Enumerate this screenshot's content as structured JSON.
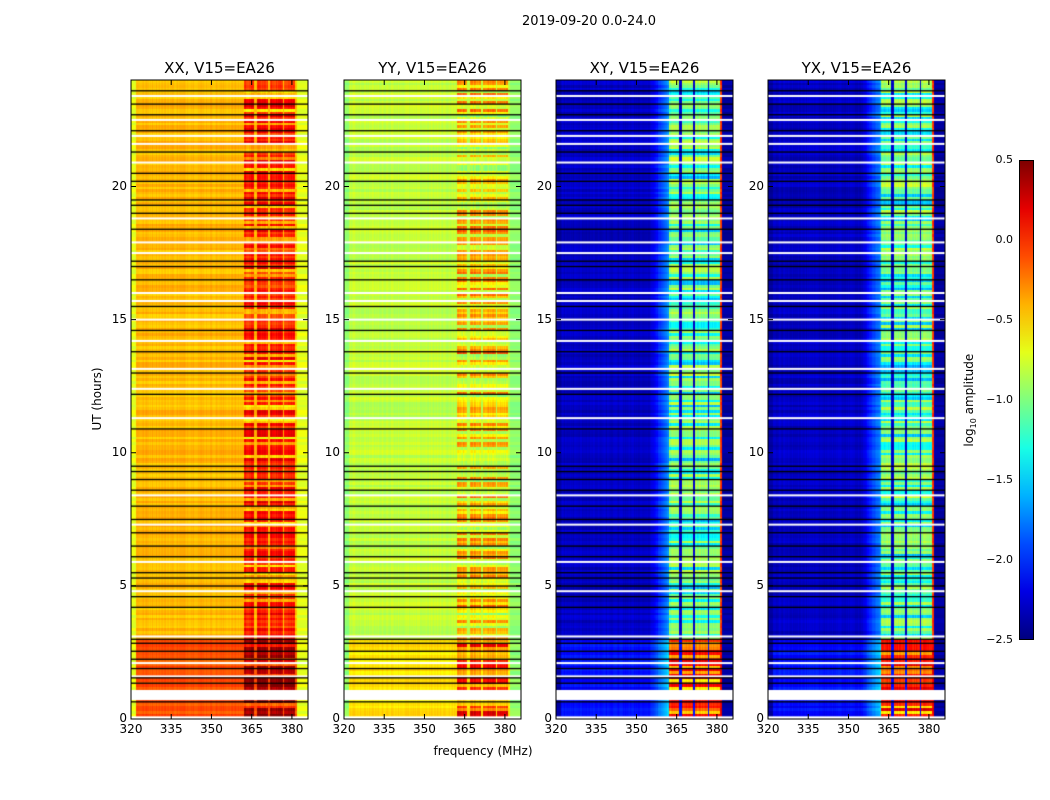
{
  "chart_data": {
    "type": "heatmap",
    "title": "2019-09-20 0.0-24.0",
    "xlabel": "frequency (MHz)",
    "ylabel": "UT (hours)",
    "xlim": [
      320,
      386
    ],
    "ylim": [
      0,
      24
    ],
    "xticks": [
      "320",
      "335",
      "350",
      "365",
      "380"
    ],
    "xtick_values": [
      320,
      335,
      350,
      365,
      380
    ],
    "yticks": [
      "0",
      "5",
      "10",
      "15",
      "20"
    ],
    "ytick_values": [
      0,
      5,
      10,
      15,
      20
    ],
    "colormap": "jet",
    "colorbar": {
      "label_prefix": "log",
      "label_sub": "10",
      "label_suffix": " amplitude",
      "range": [
        -2.5,
        0.5
      ],
      "ticks": [
        "0.5",
        "0.0",
        "−0.5",
        "−1.0",
        "−1.5",
        "−2.0",
        "−2.5"
      ],
      "tick_values": [
        0.5,
        0.0,
        -0.5,
        -1.0,
        -1.5,
        -2.0,
        -2.5
      ]
    },
    "band_channels_mhz": [
      [
        362,
        366
      ],
      [
        367,
        371
      ],
      [
        372,
        376.5
      ],
      [
        377,
        381
      ]
    ],
    "flagged_black_hours": [
      0.65,
      1.35,
      1.55,
      1.9,
      2.25,
      2.55,
      2.85,
      3.0,
      4.2,
      4.6,
      5.0,
      5.3,
      5.5,
      6.1,
      6.5,
      7.0,
      7.5,
      8.0,
      8.6,
      9.0,
      9.3,
      9.5,
      10.9,
      12.2,
      13.0,
      13.8,
      14.6,
      15.5,
      16.5,
      17.0,
      17.2,
      18.4,
      19.0,
      19.3,
      19.5,
      20.2,
      20.5,
      21.3,
      22.1,
      22.7,
      23.1,
      23.6
    ],
    "flagged_white_hours": [
      1.6,
      2.1,
      3.1,
      4.8,
      5.9,
      7.3,
      8.4,
      11.3,
      12.4,
      13.15,
      14.2,
      15.0,
      15.7,
      16.0,
      17.5,
      17.9,
      18.8,
      20.9,
      21.6,
      21.9,
      22.5,
      23.4
    ],
    "flagged_white_spans": [
      [
        0.71,
        1.09
      ],
      [
        0.0,
        0.1
      ]
    ],
    "panels": [
      {
        "title": "XX, V15=EA26",
        "base": -0.42,
        "early_base": -0.12,
        "band": 0.05,
        "early_band": 0.4,
        "edge": -0.7,
        "patchy": 0.25
      },
      {
        "title": "YY, V15=EA26",
        "base": -0.8,
        "early_base": -0.55,
        "band": -0.3,
        "early_band": 0.1,
        "edge": -0.95,
        "patchy": 0.6
      },
      {
        "title": "XY, V15=EA26",
        "base": -2.3,
        "early_base": -2.1,
        "band": -0.95,
        "early_band": 0.05,
        "edge": -2.4,
        "patchy": 0.35
      },
      {
        "title": "YX, V15=EA26",
        "base": -2.3,
        "early_base": -2.1,
        "band": -0.95,
        "early_band": 0.05,
        "edge": -2.4,
        "patchy": 0.35
      }
    ]
  }
}
